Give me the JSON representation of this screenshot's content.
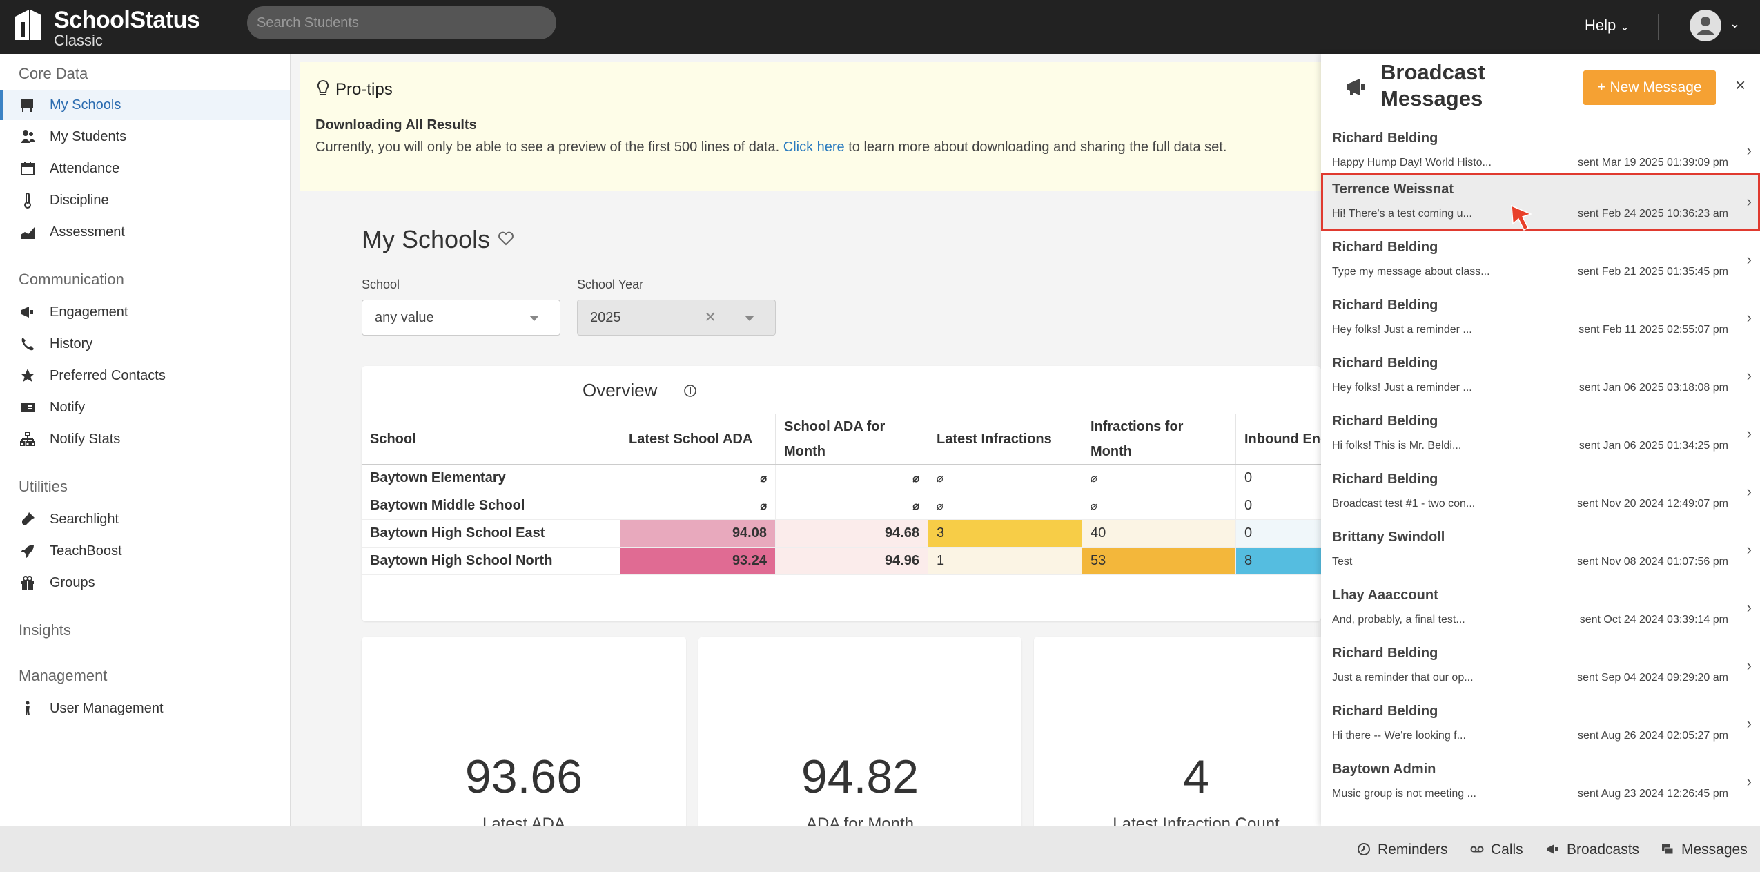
{
  "app": {
    "title": "SchoolStatus",
    "subtitle": "Classic"
  },
  "topbar": {
    "search_placeholder": "Search Students",
    "help_label": "Help"
  },
  "sidebar": {
    "sections": [
      {
        "title": "Core Data",
        "items": [
          {
            "label": "My Schools",
            "icon": "chalkboard-icon",
            "active": true
          },
          {
            "label": "My Students",
            "icon": "users-icon"
          },
          {
            "label": "Attendance",
            "icon": "calendar-icon"
          },
          {
            "label": "Discipline",
            "icon": "thermometer-icon"
          },
          {
            "label": "Assessment",
            "icon": "chart-area-icon"
          }
        ]
      },
      {
        "title": "Communication",
        "items": [
          {
            "label": "Engagement",
            "icon": "megaphone-icon"
          },
          {
            "label": "History",
            "icon": "phone-icon"
          },
          {
            "label": "Preferred Contacts",
            "icon": "star-icon"
          },
          {
            "label": "Notify",
            "icon": "card-icon"
          },
          {
            "label": "Notify Stats",
            "icon": "sitemap-icon"
          }
        ]
      },
      {
        "title": "Utilities",
        "items": [
          {
            "label": "Searchlight",
            "icon": "flashlight-icon"
          },
          {
            "label": "TeachBoost",
            "icon": "rocket-icon"
          },
          {
            "label": "Groups",
            "icon": "gift-icon"
          }
        ]
      },
      {
        "title": "Insights",
        "items": []
      },
      {
        "title": "Management",
        "items": [
          {
            "label": "User Management",
            "icon": "person-icon"
          }
        ]
      }
    ]
  },
  "protips": {
    "title": "Pro-tips",
    "heading": "Downloading All Results",
    "text_before": "Currently, you will only be able to see a preview of the first 500 lines of data. ",
    "link": "Click here",
    "text_after": " to learn more about downloading and sharing the full data set."
  },
  "main": {
    "title": "My Schools",
    "school_filter": {
      "label": "School",
      "value": "any value"
    },
    "year_filter": {
      "label": "School Year",
      "value": "2025"
    }
  },
  "overview": {
    "title": "Overview",
    "columns": [
      "School",
      "Latest School ADA",
      "School ADA for Month",
      "Latest Infractions",
      "Infractions for Month",
      "Inbound Eng (Month)"
    ],
    "rows": [
      {
        "school": "Baytown Elementary",
        "latest_ada": "⌀",
        "ada_month": "⌀",
        "latest_inf": "⌀",
        "inf_month": "⌀",
        "inbound": "0"
      },
      {
        "school": "Baytown Middle School",
        "latest_ada": "⌀",
        "ada_month": "⌀",
        "latest_inf": "⌀",
        "inf_month": "⌀",
        "inbound": "0"
      },
      {
        "school": "Baytown High School East",
        "latest_ada": "94.08",
        "ada_month": "94.68",
        "latest_inf": "3",
        "inf_month": "40",
        "inbound": "0"
      },
      {
        "school": "Baytown High School North",
        "latest_ada": "93.24",
        "ada_month": "94.96",
        "latest_inf": "1",
        "inf_month": "53",
        "inbound": "8"
      }
    ]
  },
  "kpis": [
    {
      "value": "93.66",
      "label": "Latest ADA"
    },
    {
      "value": "94.82",
      "label": "ADA for Month"
    },
    {
      "value": "4",
      "label": "Latest Infraction Count"
    }
  ],
  "broadcast": {
    "title_line1": "Broadcast",
    "title_line2": "Messages",
    "new_button": "+ New Message",
    "messages": [
      {
        "name": "Richard Belding",
        "preview": "Happy Hump Day! World Histo...",
        "time": "sent Mar 19 2025 01:39:09 pm"
      },
      {
        "name": "Terrence Weissnat",
        "preview": "Hi! There's a test coming u...",
        "time": "sent Feb 24 2025 10:36:23 am",
        "selected": true
      },
      {
        "name": "Richard Belding",
        "preview": "Type my message about class...",
        "time": "sent Feb 21 2025 01:35:45 pm"
      },
      {
        "name": "Richard Belding",
        "preview": "Hey folks! Just a reminder ...",
        "time": "sent Feb 11 2025 02:55:07 pm"
      },
      {
        "name": "Richard Belding",
        "preview": "Hey folks! Just a reminder ...",
        "time": "sent Jan 06 2025 03:18:08 pm"
      },
      {
        "name": "Richard Belding",
        "preview": "Hi folks! This is Mr. Beldi...",
        "time": "sent Jan 06 2025 01:34:25 pm"
      },
      {
        "name": "Richard Belding",
        "preview": "Broadcast test #1 - two con...",
        "time": "sent Nov 20 2024 12:49:07 pm"
      },
      {
        "name": "Brittany Swindoll",
        "preview": "Test",
        "time": "sent Nov 08 2024 01:07:56 pm"
      },
      {
        "name": "Lhay Aaaccount",
        "preview": "And, probably, a final test...",
        "time": "sent Oct 24 2024 03:39:14 pm"
      },
      {
        "name": "Richard Belding",
        "preview": "Just a reminder that our op...",
        "time": "sent Sep 04 2024 09:29:20 am"
      },
      {
        "name": "Richard Belding",
        "preview": "Hi there -- We're looking f...",
        "time": "sent Aug 26 2024 02:05:27 pm"
      },
      {
        "name": "Baytown Admin",
        "preview": "Music group is not meeting ...",
        "time": "sent Aug 23 2024 12:26:45 pm"
      }
    ]
  },
  "bottombar": {
    "reminders": "Reminders",
    "calls": "Calls",
    "broadcasts": "Broadcasts",
    "messages": "Messages"
  },
  "colors": {
    "ada_94_08": "#e8a9bd",
    "ada_93_24": "#e06b93",
    "ada_month": "#fbeceb",
    "inf_3": "#f7cd47",
    "inf_1": "#fbf4e4",
    "infm_40": "#fbf4e4",
    "infm_53": "#f3b73b",
    "inbound_8": "#55bde0",
    "accent_orange": "#f5a133",
    "selected_outline": "#e03a2f"
  }
}
